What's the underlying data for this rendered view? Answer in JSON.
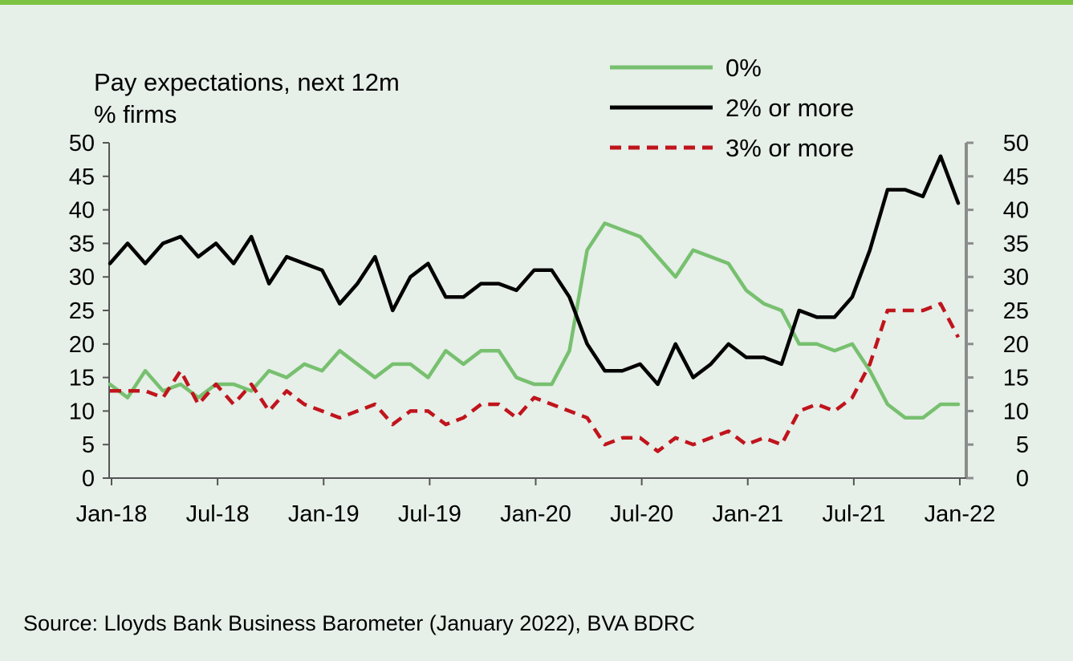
{
  "chart_data": {
    "type": "line",
    "title": "Pay expectations, next 12m",
    "subtitle": "% firms",
    "x_tick_labels": [
      "Jan-18",
      "Jul-18",
      "Jan-19",
      "Jul-19",
      "Jan-20",
      "Jul-20",
      "Jan-21",
      "Jul-21",
      "Jan-22"
    ],
    "x_tick_months": [
      "2018-01",
      "2018-07",
      "2019-01",
      "2019-07",
      "2020-01",
      "2020-07",
      "2021-01",
      "2021-07",
      "2022-01"
    ],
    "x": [
      "2018-01",
      "2018-02",
      "2018-03",
      "2018-04",
      "2018-05",
      "2018-06",
      "2018-07",
      "2018-08",
      "2018-09",
      "2018-10",
      "2018-11",
      "2018-12",
      "2019-01",
      "2019-02",
      "2019-03",
      "2019-04",
      "2019-05",
      "2019-06",
      "2019-07",
      "2019-08",
      "2019-09",
      "2019-10",
      "2019-11",
      "2019-12",
      "2020-01",
      "2020-02",
      "2020-03",
      "2020-04",
      "2020-05",
      "2020-06",
      "2020-07",
      "2020-08",
      "2020-09",
      "2020-10",
      "2020-11",
      "2020-12",
      "2021-01",
      "2021-02",
      "2021-03",
      "2021-04",
      "2021-05",
      "2021-06",
      "2021-07",
      "2021-08",
      "2021-09",
      "2021-10",
      "2021-11",
      "2021-12",
      "2022-01"
    ],
    "series": [
      {
        "name": "0%",
        "color": "#77c06f",
        "style": "solid",
        "values": [
          14,
          12,
          16,
          13,
          14,
          12,
          14,
          14,
          13,
          16,
          15,
          17,
          16,
          19,
          17,
          15,
          17,
          17,
          15,
          19,
          17,
          19,
          19,
          15,
          14,
          14,
          19,
          34,
          38,
          37,
          36,
          33,
          30,
          34,
          33,
          32,
          28,
          26,
          25,
          20,
          20,
          19,
          20,
          16,
          11,
          9,
          9,
          11,
          11
        ]
      },
      {
        "name": "2% or more",
        "color": "#000000",
        "style": "solid",
        "values": [
          32,
          35,
          32,
          35,
          36,
          33,
          35,
          32,
          36,
          29,
          33,
          32,
          31,
          26,
          29,
          33,
          25,
          30,
          32,
          27,
          27,
          29,
          29,
          28,
          31,
          31,
          27,
          20,
          16,
          16,
          17,
          14,
          20,
          15,
          17,
          20,
          18,
          18,
          17,
          25,
          24,
          24,
          27,
          34,
          43,
          43,
          42,
          48,
          41
        ]
      },
      {
        "name": "3% or more",
        "color": "#c0141c",
        "style": "dashed",
        "values": [
          13,
          13,
          13,
          12,
          16,
          11,
          14,
          11,
          14,
          10,
          13,
          11,
          10,
          9,
          10,
          11,
          8,
          10,
          10,
          8,
          9,
          11,
          11,
          9,
          12,
          11,
          10,
          9,
          5,
          6,
          6,
          4,
          6,
          5,
          6,
          7,
          5,
          6,
          5,
          10,
          11,
          10,
          12,
          17,
          25,
          25,
          25,
          26,
          21
        ]
      }
    ],
    "ylim": [
      0,
      50
    ],
    "y_ticks": [
      "0",
      "5",
      "10",
      "15",
      "20",
      "25",
      "30",
      "35",
      "40",
      "45",
      "50"
    ],
    "legend_position": "top-right",
    "grid": false,
    "dual_axis_same_scale": true
  },
  "source_note": "Source: Lloyds Bank Business Barometer (January 2022), BVA BDRC"
}
